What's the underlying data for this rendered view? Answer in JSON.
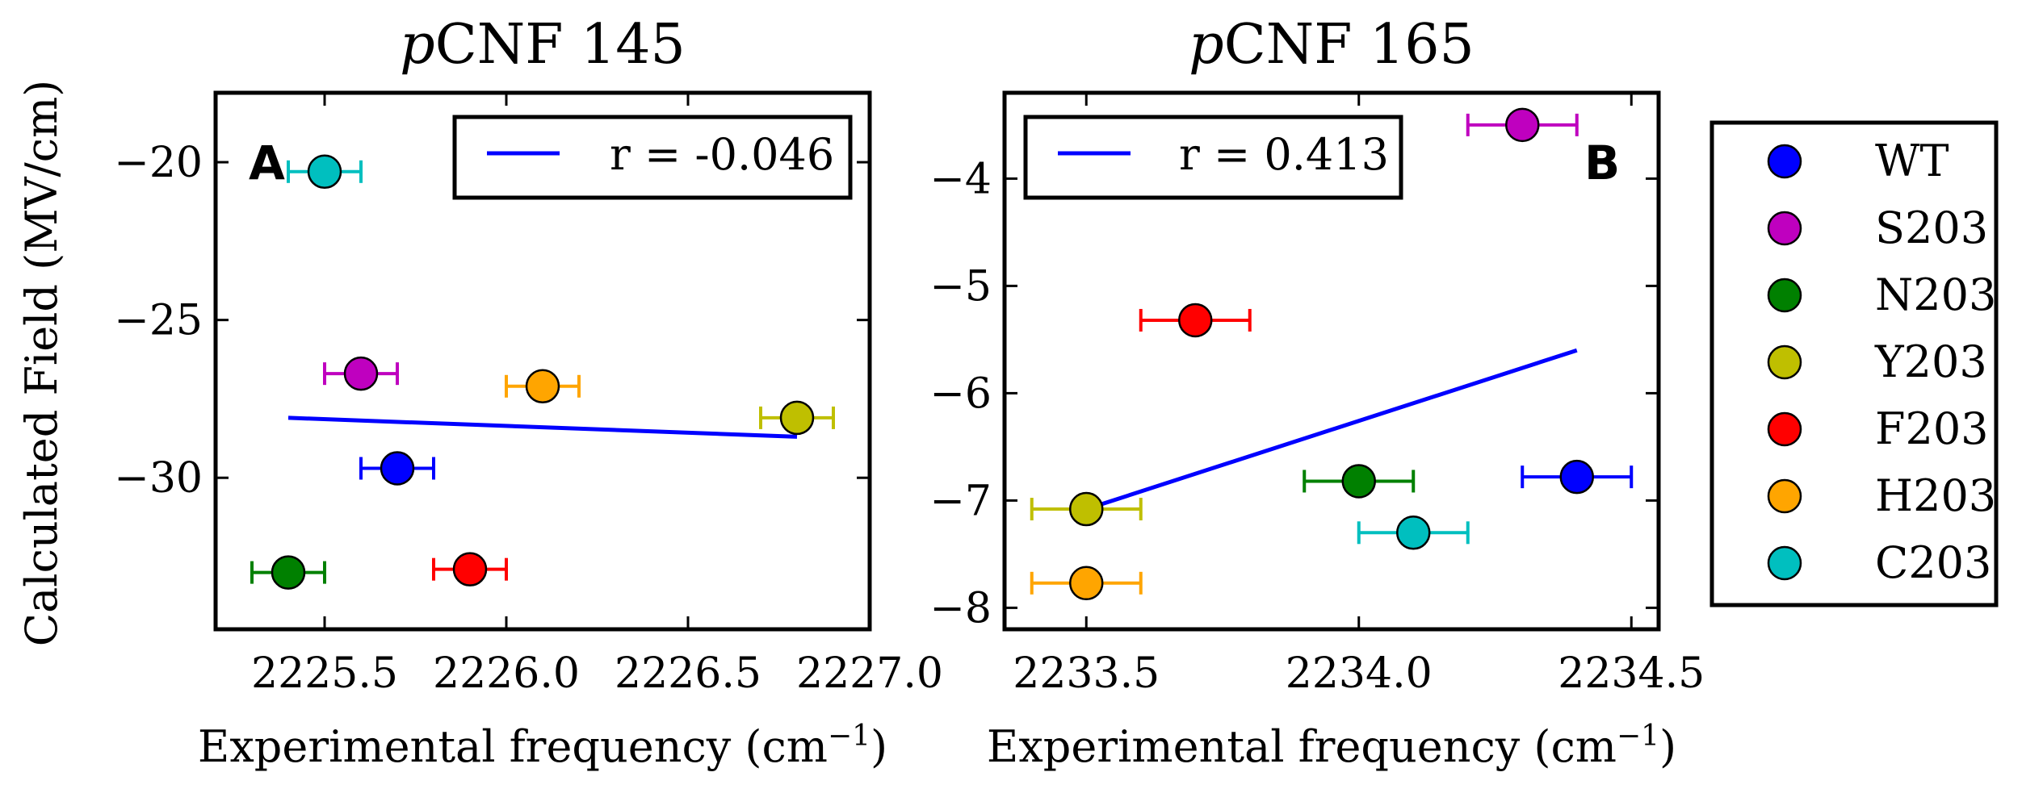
{
  "figure": {
    "ylabel": "Calculated Field (MV/cm)",
    "legend_placement": "right of panels",
    "legend_entries": [
      {
        "label": "WT",
        "color": "#0000ff"
      },
      {
        "label": "S203",
        "color": "#bf00bf"
      },
      {
        "label": "N203",
        "color": "#008000"
      },
      {
        "label": "Y203",
        "color": "#bfbf00"
      },
      {
        "label": "F203",
        "color": "#ff0000"
      },
      {
        "label": "H203",
        "color": "#ffa500"
      },
      {
        "label": "C203",
        "color": "#00bfbf"
      }
    ]
  },
  "chart_data": [
    {
      "type": "scatter",
      "panel_label": "A",
      "title_italic": "p",
      "title_rest": "CNF 145",
      "xlabel_main": "Experimental frequency (cm",
      "xlabel_sup": "−1",
      "xlabel_close": ")",
      "xlim": [
        2225.2,
        2227.0
      ],
      "ylim": [
        -34.8,
        -17.8
      ],
      "xticks": [
        2225.5,
        2226.0,
        2226.5,
        2227.0
      ],
      "xtick_labels": [
        "2225.5",
        "2226.0",
        "2226.5",
        "2227.0"
      ],
      "yticks": [
        -30,
        -25,
        -20
      ],
      "ytick_labels": [
        "−30",
        "−25",
        "−20"
      ],
      "fit": {
        "label": "r = -0.046",
        "x": [
          2225.4,
          2226.8
        ],
        "y": [
          -28.1,
          -28.7
        ],
        "color": "#0000ff",
        "legend": "upper right"
      },
      "points": [
        {
          "name": "WT",
          "x": 2225.7,
          "y": -29.7,
          "xerr": 0.1,
          "color": "#0000ff"
        },
        {
          "name": "S203",
          "x": 2225.6,
          "y": -26.7,
          "xerr": 0.1,
          "color": "#bf00bf"
        },
        {
          "name": "N203",
          "x": 2225.4,
          "y": -33.0,
          "xerr": 0.1,
          "color": "#008000"
        },
        {
          "name": "Y203",
          "x": 2226.8,
          "y": -28.1,
          "xerr": 0.1,
          "color": "#bfbf00"
        },
        {
          "name": "F203",
          "x": 2225.9,
          "y": -32.9,
          "xerr": 0.1,
          "color": "#ff0000"
        },
        {
          "name": "H203",
          "x": 2226.1,
          "y": -27.1,
          "xerr": 0.1,
          "color": "#ffa500"
        },
        {
          "name": "C203",
          "x": 2225.5,
          "y": -20.3,
          "xerr": 0.1,
          "color": "#00bfbf"
        }
      ]
    },
    {
      "type": "scatter",
      "panel_label": "B",
      "title_italic": "p",
      "title_rest": "CNF 165",
      "xlabel_main": "Experimental frequency (cm",
      "xlabel_sup": "−1",
      "xlabel_close": ")",
      "xlim": [
        2233.35,
        2234.55
      ],
      "ylim": [
        -8.2,
        -3.2
      ],
      "xticks": [
        2233.5,
        2234.0,
        2234.5
      ],
      "xtick_labels": [
        "2233.5",
        "2234.0",
        "2234.5"
      ],
      "yticks": [
        -8,
        -7,
        -6,
        -5,
        -4
      ],
      "ytick_labels": [
        "−8",
        "−7",
        "−6",
        "−5",
        "−4"
      ],
      "fit": {
        "label": "r = 0.413",
        "x": [
          2233.5,
          2234.4
        ],
        "y": [
          -7.08,
          -5.6
        ],
        "color": "#0000ff",
        "legend": "upper left"
      },
      "points": [
        {
          "name": "WT",
          "x": 2234.4,
          "y": -6.78,
          "xerr": 0.1,
          "color": "#0000ff"
        },
        {
          "name": "S203",
          "x": 2234.3,
          "y": -3.5,
          "xerr": 0.1,
          "color": "#bf00bf"
        },
        {
          "name": "N203",
          "x": 2234.0,
          "y": -6.82,
          "xerr": 0.1,
          "color": "#008000"
        },
        {
          "name": "Y203",
          "x": 2233.5,
          "y": -7.08,
          "xerr": 0.1,
          "color": "#bfbf00"
        },
        {
          "name": "F203",
          "x": 2233.7,
          "y": -5.32,
          "xerr": 0.1,
          "color": "#ff0000"
        },
        {
          "name": "H203",
          "x": 2233.5,
          "y": -7.77,
          "xerr": 0.1,
          "color": "#ffa500"
        },
        {
          "name": "C203",
          "x": 2234.1,
          "y": -7.3,
          "xerr": 0.1,
          "color": "#00bfbf"
        }
      ]
    }
  ]
}
